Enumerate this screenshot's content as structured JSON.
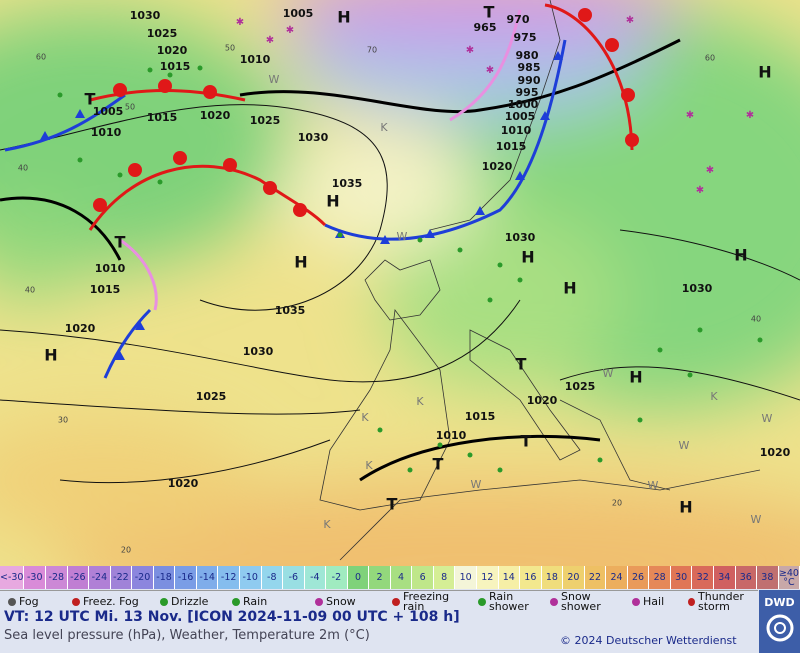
{
  "map": {
    "pressure_labels": [
      "1030",
      "1025",
      "1020",
      "1015",
      "1010",
      "1005",
      "1005",
      "1015",
      "1020",
      "1025",
      "1030",
      "1035",
      "1010",
      "1010",
      "1015",
      "1020",
      "1035",
      "1030",
      "1025",
      "1020",
      "965",
      "970",
      "975",
      "980",
      "985",
      "990",
      "995",
      "1000",
      "1005",
      "1010",
      "1015",
      "1020",
      "1030",
      "1030",
      "1025",
      "1020",
      "1015",
      "1010",
      "1020"
    ],
    "centers": [
      "H",
      "H",
      "H",
      "H",
      "H",
      "H",
      "H",
      "H",
      "H",
      "H",
      "T",
      "T",
      "T",
      "T",
      "T",
      "T",
      "T"
    ],
    "grid_labels": [
      "60",
      "60",
      "40",
      "40",
      "40",
      "30",
      "20",
      "20",
      "50",
      "50",
      "70"
    ],
    "markers": [
      "K",
      "K",
      "K",
      "K",
      "K",
      "K",
      "W",
      "W",
      "W",
      "W",
      "W",
      "W",
      "W",
      "W"
    ]
  },
  "color_scale": {
    "labels": [
      "<-30",
      "-30",
      "-28",
      "-26",
      "-24",
      "-22",
      "-20",
      "-18",
      "-16",
      "-14",
      "-12",
      "-10",
      "-8",
      "-6",
      "-4",
      "-2",
      "0",
      "2",
      "4",
      "6",
      "8",
      "10",
      "12",
      "14",
      "16",
      "18",
      "20",
      "22",
      "24",
      "26",
      "28",
      "30",
      "32",
      "34",
      "36",
      "38",
      "≥40 °C"
    ],
    "colors": [
      "#e7a9e0",
      "#d98bd8",
      "#cc88d6",
      "#c07ed3",
      "#b080d6",
      "#a083d8",
      "#8c86de",
      "#7b8fe0",
      "#7a9de6",
      "#7fadea",
      "#85bdee",
      "#8fcbf0",
      "#94d6ed",
      "#99dfe3",
      "#9fe7d6",
      "#a0ebc0",
      "#7fd27a",
      "#93d87c",
      "#a8df82",
      "#bfe78a",
      "#d5ee95",
      "#f4f5d8",
      "#f7f4be",
      "#f6efa6",
      "#f3e88e",
      "#f0dd7c",
      "#eed06e",
      "#eec064",
      "#ecae5e",
      "#e99a5a",
      "#e58858",
      "#e07656",
      "#d96a5a",
      "#d06060",
      "#c86868",
      "#c07070",
      "#c8a8a8"
    ]
  },
  "legend": [
    "Fog",
    "Freez. Fog",
    "Drizzle",
    "Rain",
    "Snow",
    "Freezing rain",
    "Rain shower",
    "Snow shower",
    "Hail",
    "Thunder storm"
  ],
  "footer": {
    "valid_time": "VT: 12 UTC Mi.  13 Nov. [ICON 2024-11-09  00 UTC + 108 h]",
    "description": "Sea level pressure (hPa), Weather, Temperature 2m (°C)",
    "copyright": "© 2024 Deutscher Wetterdienst",
    "logo": "DWD"
  }
}
